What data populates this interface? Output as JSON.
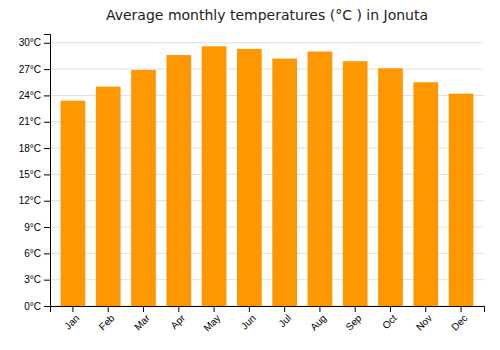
{
  "chart_data": {
    "type": "bar",
    "title": "Average monthly temperatures (°C ) in Jonuta",
    "categories": [
      "Jan",
      "Feb",
      "Mar",
      "Apr",
      "May",
      "Jun",
      "Jul",
      "Aug",
      "Sep",
      "Oct",
      "Nov",
      "Dec"
    ],
    "values": [
      23.4,
      25.0,
      26.9,
      28.6,
      29.6,
      29.3,
      28.2,
      29.0,
      27.9,
      27.1,
      25.5,
      24.2
    ],
    "color": "#FF9800",
    "ylim": [
      0,
      31
    ],
    "yticks": [
      {
        "value": 0,
        "label": "0°C"
      },
      {
        "value": 3,
        "label": "3°C"
      },
      {
        "value": 6,
        "label": "6°C"
      },
      {
        "value": 9,
        "label": "9°C"
      },
      {
        "value": 12,
        "label": "12°C"
      },
      {
        "value": 15,
        "label": "15°C"
      },
      {
        "value": 18,
        "label": "18°C"
      },
      {
        "value": 21,
        "label": "21°C"
      },
      {
        "value": 24,
        "label": "24°C"
      },
      {
        "value": 27,
        "label": "27°C"
      },
      {
        "value": 30,
        "label": "30°C"
      }
    ],
    "grid": true
  }
}
